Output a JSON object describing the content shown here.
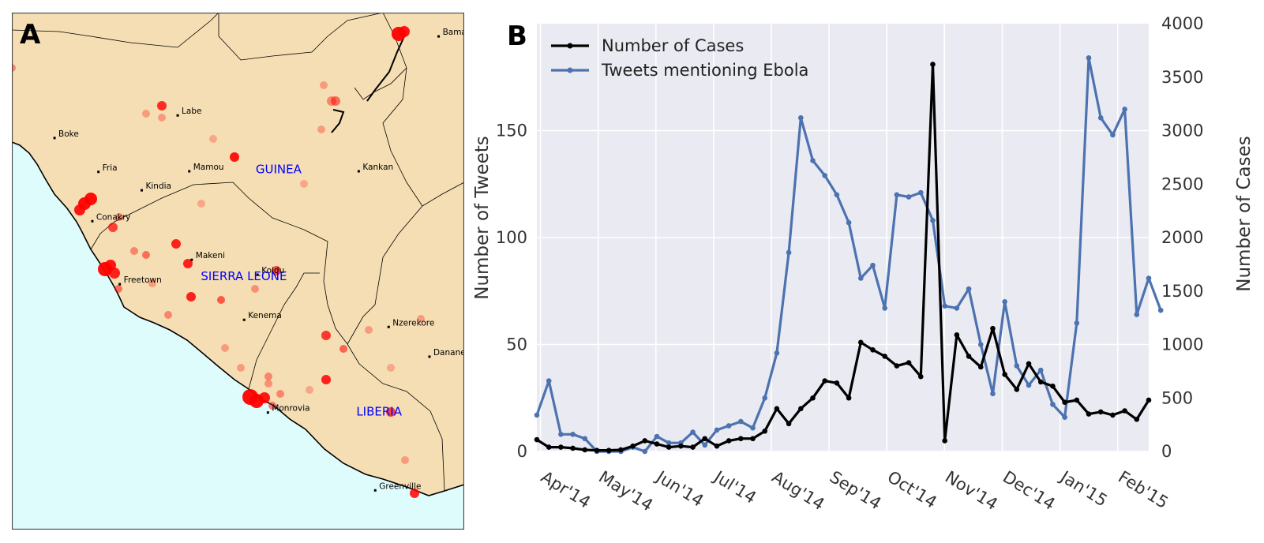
{
  "panel_a": {
    "letter": "A",
    "colors": {
      "land": "#f5deb3",
      "sea": "#dffcfd",
      "hotspot": "#ff0000",
      "country_label": "#0000ff",
      "border": "#000000"
    },
    "cities": [
      {
        "name": "Bamako",
        "lon": -8.0,
        "lat": 12.65
      },
      {
        "name": "Labe",
        "lon": -12.28,
        "lat": 11.32
      },
      {
        "name": "Boke",
        "lon": -14.3,
        "lat": 10.94
      },
      {
        "name": "Fria",
        "lon": -13.58,
        "lat": 10.37
      },
      {
        "name": "Mamou",
        "lon": -12.09,
        "lat": 10.38
      },
      {
        "name": "Kindia",
        "lon": -12.87,
        "lat": 10.06
      },
      {
        "name": "Kankan",
        "lon": -9.31,
        "lat": 10.38
      },
      {
        "name": "Conakry",
        "lon": -13.68,
        "lat": 9.54
      },
      {
        "name": "Makeni",
        "lon": -12.05,
        "lat": 8.89
      },
      {
        "name": "Freetown",
        "lon": -13.23,
        "lat": 8.48
      },
      {
        "name": "Koidu",
        "lon": -10.97,
        "lat": 8.64
      },
      {
        "name": "Kenema",
        "lon": -11.19,
        "lat": 7.88
      },
      {
        "name": "Nzerekore",
        "lon": -8.82,
        "lat": 7.76
      },
      {
        "name": "Danane",
        "lon": -8.15,
        "lat": 7.26
      },
      {
        "name": "Monrovia",
        "lon": -10.8,
        "lat": 6.32
      },
      {
        "name": "Greenville",
        "lon": -9.04,
        "lat": 5.01
      }
    ],
    "countries": [
      {
        "name": "GUINEA",
        "lon": -11.0,
        "lat": 10.35
      },
      {
        "name": "SIERRA LEONE",
        "lon": -11.9,
        "lat": 8.55
      },
      {
        "name": "LIBERIA",
        "lon": -9.35,
        "lat": 6.27
      }
    ]
  },
  "panel_b": {
    "letter": "B"
  },
  "chart_data": {
    "type": "line",
    "x_ticks": [
      "Apr'14",
      "May'14",
      "Jun'14",
      "Jul'14",
      "Aug'14",
      "Sep'14",
      "Oct'14",
      "Nov'14",
      "Dec'14",
      "Jan'15",
      "Feb'15"
    ],
    "ylabel_left": "Number of Tweets",
    "ylabel_right": "Number of Cases",
    "ylim_left": [
      0,
      200
    ],
    "ylim_right": [
      0,
      4000
    ],
    "yticks_left": [
      0,
      50,
      100,
      150
    ],
    "yticks_right": [
      0,
      500,
      1000,
      1500,
      2000,
      2500,
      3000,
      3500,
      4000
    ],
    "grid": true,
    "legend_position": "top-left",
    "series": [
      {
        "name": "Number of Cases",
        "axis": "right",
        "color": "#000000",
        "values": [
          110,
          40,
          40,
          30,
          15,
          10,
          10,
          15,
          50,
          100,
          70,
          40,
          50,
          40,
          120,
          50,
          100,
          120,
          120,
          190,
          400,
          260,
          400,
          500,
          660,
          640,
          500,
          1020,
          950,
          890,
          800,
          830,
          700,
          3620,
          100,
          1090,
          890,
          790,
          1150,
          720,
          580,
          820,
          650,
          610,
          460,
          480,
          350,
          370,
          340,
          380,
          300,
          480
        ]
      },
      {
        "name": "Tweets mentioning Ebola",
        "axis": "left",
        "color": "#4c72b0",
        "values": [
          17,
          33,
          8,
          8,
          6,
          0,
          0,
          0,
          2,
          0,
          7,
          4,
          4,
          9,
          3,
          10,
          12,
          14,
          11,
          25,
          46,
          93,
          156,
          136,
          129,
          120,
          107,
          81,
          87,
          67,
          120,
          119,
          121,
          108,
          68,
          67,
          76,
          50,
          27,
          70,
          40,
          31,
          38,
          22,
          16,
          60,
          184,
          156,
          148,
          160,
          64,
          81,
          66
        ]
      }
    ]
  }
}
